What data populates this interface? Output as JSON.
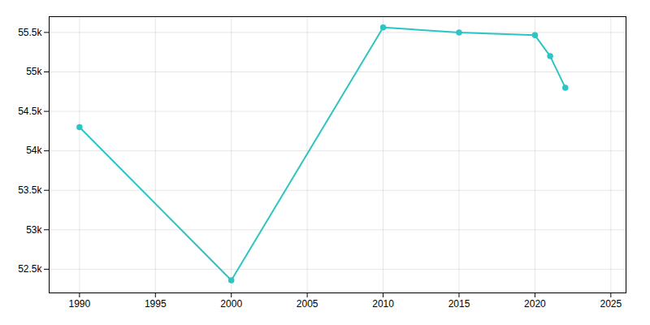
{
  "chart_data": {
    "type": "line",
    "x": [
      1990,
      2000,
      2010,
      2015,
      2020,
      2021,
      2022
    ],
    "values": [
      54300,
      52360,
      55564,
      55500,
      55465,
      55200,
      54800
    ],
    "color": "#2ec4c4",
    "marker": "circle",
    "xlim": [
      1988,
      2026
    ],
    "xticks": [
      1990,
      1995,
      2000,
      2005,
      2010,
      2015,
      2020,
      2025
    ],
    "ylim": [
      52200,
      55700
    ],
    "yticks": [
      {
        "value": 52500,
        "label": "52.5k"
      },
      {
        "value": 53000,
        "label": "53k"
      },
      {
        "value": 53500,
        "label": "53.5k"
      },
      {
        "value": 54000,
        "label": "54k"
      },
      {
        "value": 54500,
        "label": "54.5k"
      },
      {
        "value": 55000,
        "label": "55k"
      },
      {
        "value": 55500,
        "label": "55.5k"
      }
    ],
    "grid": true
  }
}
